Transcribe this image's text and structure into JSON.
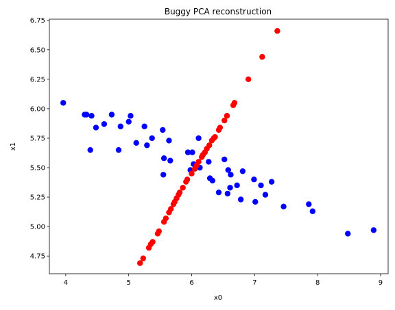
{
  "chart_data": {
    "type": "scatter",
    "title": "Buggy PCA reconstruction",
    "xlabel": "x0",
    "ylabel": "x1",
    "xlim": [
      3.74,
      9.12
    ],
    "ylim": [
      4.6,
      6.76
    ],
    "xticks": [
      4,
      5,
      6,
      7,
      8,
      9
    ],
    "yticks": [
      4.75,
      5.0,
      5.25,
      5.5,
      5.75,
      6.0,
      6.25,
      6.5,
      6.75
    ],
    "ytick_labels": [
      "4.75",
      "5.00",
      "5.25",
      "5.50",
      "5.75",
      "6.00",
      "6.25",
      "6.50",
      "6.75"
    ],
    "grid": false,
    "legend": "none",
    "series": [
      {
        "color": "#0000ff",
        "points": [
          [
            3.96,
            6.05
          ],
          [
            4.3,
            5.95
          ],
          [
            4.33,
            5.95
          ],
          [
            4.41,
            5.94
          ],
          [
            4.48,
            5.84
          ],
          [
            4.61,
            5.87
          ],
          [
            4.73,
            5.95
          ],
          [
            4.39,
            5.65
          ],
          [
            4.84,
            5.65
          ],
          [
            4.87,
            5.85
          ],
          [
            5.0,
            5.89
          ],
          [
            5.03,
            5.94
          ],
          [
            5.12,
            5.71
          ],
          [
            5.25,
            5.85
          ],
          [
            5.29,
            5.69
          ],
          [
            5.37,
            5.75
          ],
          [
            5.54,
            5.82
          ],
          [
            5.64,
            5.73
          ],
          [
            5.56,
            5.58
          ],
          [
            5.66,
            5.56
          ],
          [
            5.55,
            5.44
          ],
          [
            5.94,
            5.63
          ],
          [
            6.01,
            5.63
          ],
          [
            5.98,
            5.48
          ],
          [
            6.03,
            5.53
          ],
          [
            6.08,
            5.51
          ],
          [
            6.11,
            5.75
          ],
          [
            6.13,
            5.5
          ],
          [
            6.27,
            5.55
          ],
          [
            6.29,
            5.41
          ],
          [
            6.33,
            5.39
          ],
          [
            6.43,
            5.29
          ],
          [
            6.52,
            5.57
          ],
          [
            6.58,
            5.48
          ],
          [
            6.62,
            5.44
          ],
          [
            6.61,
            5.33
          ],
          [
            6.57,
            5.28
          ],
          [
            6.72,
            5.35
          ],
          [
            6.78,
            5.23
          ],
          [
            6.81,
            5.47
          ],
          [
            6.99,
            5.4
          ],
          [
            7.01,
            5.21
          ],
          [
            7.1,
            5.35
          ],
          [
            7.17,
            5.27
          ],
          [
            7.27,
            5.38
          ],
          [
            7.46,
            5.17
          ],
          [
            7.86,
            5.19
          ],
          [
            7.92,
            5.13
          ],
          [
            8.48,
            4.94
          ],
          [
            8.89,
            4.97
          ]
        ]
      },
      {
        "color": "#ff0000",
        "points": [
          [
            5.18,
            4.69
          ],
          [
            5.23,
            4.73
          ],
          [
            5.32,
            4.82
          ],
          [
            5.35,
            4.85
          ],
          [
            5.38,
            4.87
          ],
          [
            5.46,
            4.94
          ],
          [
            5.48,
            4.96
          ],
          [
            5.56,
            5.04
          ],
          [
            5.59,
            5.07
          ],
          [
            5.64,
            5.12
          ],
          [
            5.67,
            5.15
          ],
          [
            5.71,
            5.19
          ],
          [
            5.73,
            5.21
          ],
          [
            5.76,
            5.24
          ],
          [
            5.79,
            5.27
          ],
          [
            5.81,
            5.29
          ],
          [
            5.86,
            5.33
          ],
          [
            5.91,
            5.38
          ],
          [
            5.93,
            5.4
          ],
          [
            6.0,
            5.45
          ],
          [
            6.05,
            5.49
          ],
          [
            6.08,
            5.52
          ],
          [
            6.11,
            5.55
          ],
          [
            6.16,
            5.59
          ],
          [
            6.18,
            5.61
          ],
          [
            6.21,
            5.63
          ],
          [
            6.24,
            5.66
          ],
          [
            6.28,
            5.69
          ],
          [
            6.32,
            5.73
          ],
          [
            6.35,
            5.75
          ],
          [
            6.37,
            5.76
          ],
          [
            6.43,
            5.82
          ],
          [
            6.45,
            5.84
          ],
          [
            6.52,
            5.9
          ],
          [
            6.56,
            5.94
          ],
          [
            6.66,
            6.03
          ],
          [
            6.68,
            6.05
          ],
          [
            6.9,
            6.25
          ],
          [
            7.12,
            6.44
          ],
          [
            7.36,
            6.66
          ]
        ]
      }
    ]
  }
}
